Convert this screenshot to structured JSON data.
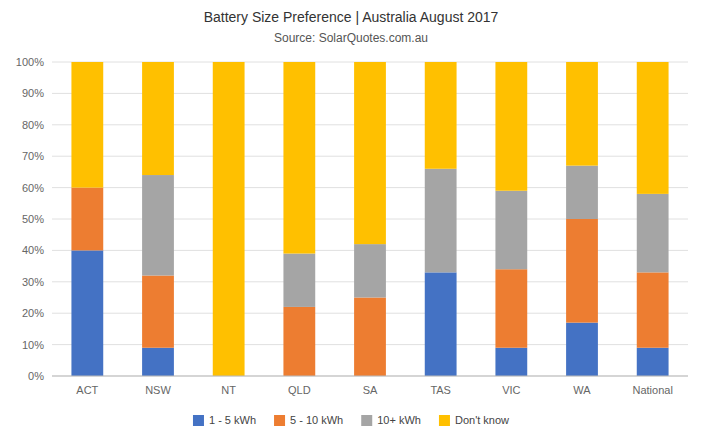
{
  "chart_data": {
    "type": "bar",
    "stacked": true,
    "title": "Battery Size Preference | Australia August 2017",
    "subtitle": "Source: SolarQuotes.com.au",
    "categories": [
      "ACT",
      "NSW",
      "NT",
      "QLD",
      "SA",
      "TAS",
      "VIC",
      "WA",
      "National"
    ],
    "series": [
      {
        "name": "1 - 5 kWh",
        "color": "#4472C4",
        "values": [
          40,
          9,
          0,
          0,
          0,
          33,
          9,
          17,
          9
        ]
      },
      {
        "name": "5 - 10 kWh",
        "color": "#ED7D31",
        "values": [
          20,
          23,
          0,
          22,
          25,
          0,
          25,
          33,
          24
        ]
      },
      {
        "name": "10+ kWh",
        "color": "#A5A5A5",
        "values": [
          0,
          32,
          0,
          17,
          17,
          33,
          25,
          17,
          25
        ]
      },
      {
        "name": "Don't know",
        "color": "#FFC000",
        "values": [
          40,
          36,
          100,
          61,
          58,
          34,
          41,
          33,
          42
        ]
      }
    ],
    "ylim": [
      0,
      100
    ],
    "yticks": [
      {
        "value": 0,
        "label": "0%"
      },
      {
        "value": 10,
        "label": "10%"
      },
      {
        "value": 20,
        "label": "20%"
      },
      {
        "value": 30,
        "label": "30%"
      },
      {
        "value": 40,
        "label": "40%"
      },
      {
        "value": 50,
        "label": "50%"
      },
      {
        "value": 60,
        "label": "60%"
      },
      {
        "value": 70,
        "label": "70%"
      },
      {
        "value": 80,
        "label": "80%"
      },
      {
        "value": 90,
        "label": "90%"
      },
      {
        "value": 100,
        "label": "100%"
      }
    ],
    "grid": true,
    "legend": "bottom"
  }
}
